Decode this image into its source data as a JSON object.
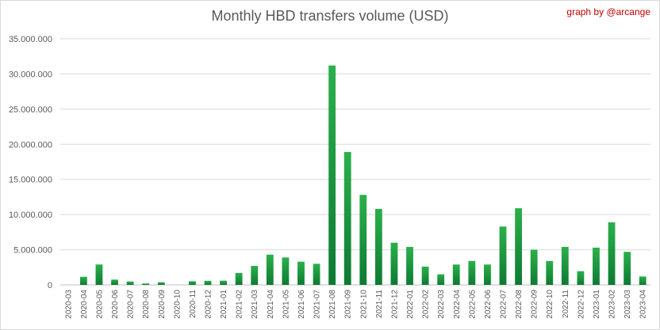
{
  "chart_data": {
    "type": "bar",
    "title": "Monthly HBD transfers volume (USD)",
    "annotation": "graph by @arcange",
    "xlabel": "",
    "ylabel": "",
    "ylim": [
      0,
      35000000
    ],
    "yticks": [
      0,
      5000000,
      10000000,
      15000000,
      20000000,
      25000000,
      30000000,
      35000000
    ],
    "ytick_labels": [
      "0",
      "5.000.000",
      "10.000.000",
      "15.000.000",
      "20.000.000",
      "25.000.000",
      "30.000.000",
      "35.000.000"
    ],
    "grid": true,
    "legend": "none",
    "bar_color_top": "#2bb04a",
    "bar_color_bottom": "#0d7a33",
    "categories": [
      "2020-03",
      "2020-04",
      "2020-05",
      "2020-06",
      "2020-07",
      "2020-08",
      "2020-09",
      "2020-10",
      "2020-11",
      "2020-12",
      "2021-01",
      "2021-02",
      "2021-03",
      "2021-04",
      "2021-05",
      "2021-06",
      "2021-07",
      "2021-08",
      "2021-09",
      "2021-10",
      "2021-11",
      "2021-12",
      "2022-01",
      "2022-02",
      "2022-03",
      "2022-04",
      "2022-05",
      "2022-06",
      "2022-07",
      "2022-08",
      "2022-09",
      "2022-10",
      "2022-11",
      "2022-12",
      "2023-01",
      "2023-02",
      "2023-03",
      "2023-04"
    ],
    "values": [
      0,
      1150000,
      2900000,
      750000,
      480000,
      200000,
      380000,
      0,
      520000,
      580000,
      600000,
      1700000,
      2700000,
      4300000,
      3900000,
      3300000,
      3000000,
      31200000,
      18900000,
      12800000,
      10800000,
      6000000,
      5400000,
      2600000,
      1500000,
      2900000,
      3400000,
      2900000,
      8300000,
      10900000,
      5000000,
      3400000,
      5400000,
      1950000,
      5300000,
      8900000,
      4700000,
      1200000
    ]
  }
}
